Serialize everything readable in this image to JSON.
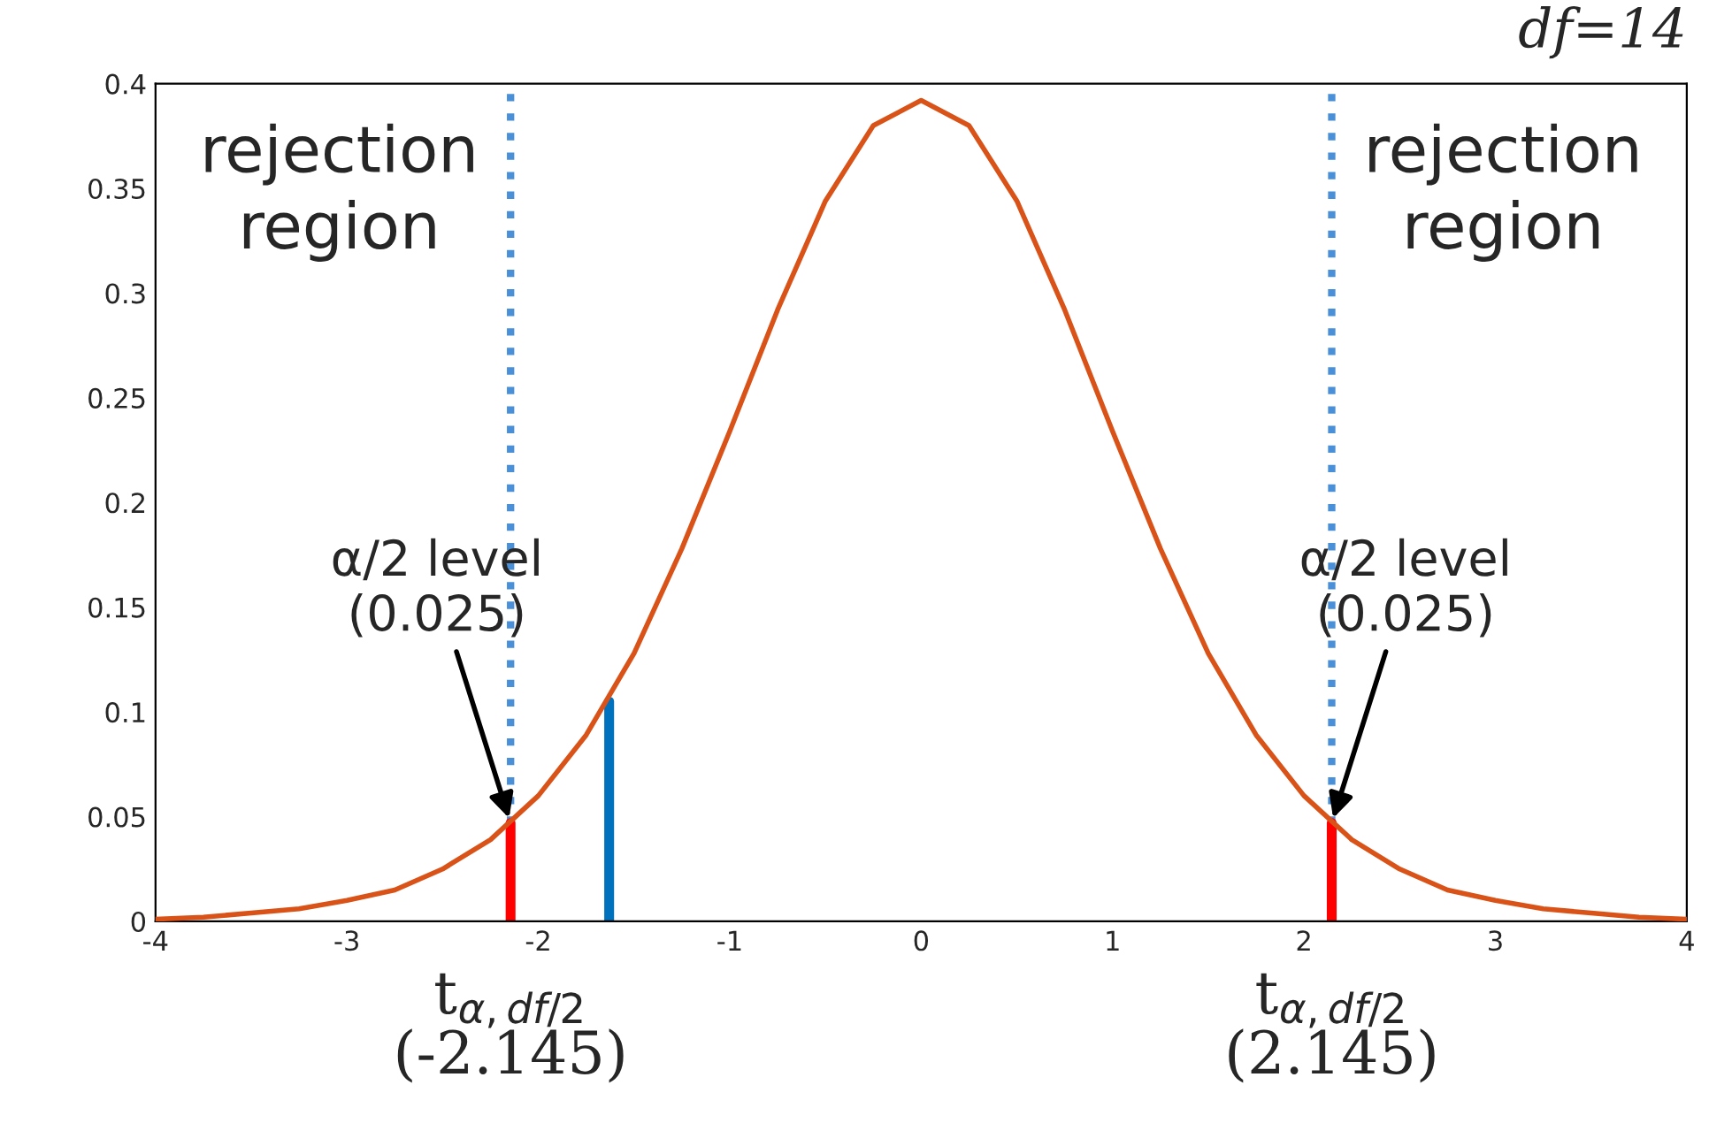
{
  "chart_data": {
    "type": "line",
    "title": "df=14",
    "x": [
      -4,
      -3.75,
      -3.5,
      -3.25,
      -3,
      -2.75,
      -2.5,
      -2.25,
      -2,
      -1.75,
      -1.5,
      -1.25,
      -1,
      -0.75,
      -0.5,
      -0.25,
      0,
      0.25,
      0.5,
      0.75,
      1,
      1.25,
      1.5,
      1.75,
      2,
      2.25,
      2.5,
      2.75,
      3,
      3.25,
      3.5,
      3.75,
      4
    ],
    "series": [
      {
        "color": "#d95319",
        "values": [
          0.001,
          0.002,
          0.004,
          0.006,
          0.01,
          0.015,
          0.025,
          0.039,
          0.06,
          0.089,
          0.128,
          0.178,
          0.234,
          0.292,
          0.344,
          0.38,
          0.392,
          0.38,
          0.344,
          0.292,
          0.234,
          0.178,
          0.128,
          0.089,
          0.06,
          0.039,
          0.025,
          0.015,
          0.01,
          0.006,
          0.004,
          0.002,
          0.001
        ]
      },
      {
        "color": "#ff0000",
        "x": [
          -2.145,
          -2.145
        ],
        "values": [
          0,
          0.047
        ]
      },
      {
        "color": "#ff0000",
        "x": [
          2.145,
          2.145
        ],
        "values": [
          0,
          0.047
        ]
      },
      {
        "color": "#0072bd",
        "x": [
          -1.63,
          -1.63
        ],
        "values": [
          0,
          0.105
        ]
      }
    ],
    "xlim": [
      -4,
      4
    ],
    "xticks": [
      -4,
      -3,
      -2,
      -1,
      0,
      1,
      2,
      3,
      4
    ],
    "ylim": [
      0,
      0.4
    ],
    "yticks": [
      0,
      0.05,
      0.1,
      0.15,
      0.2,
      0.25,
      0.3,
      0.35,
      0.4
    ],
    "ref_lines": [
      {
        "axis": "x",
        "value": -2.145,
        "label": "t$_{α,df/2}$\n(-2.145)",
        "color": "#4a90d9",
        "line_style": "dotted"
      },
      {
        "axis": "x",
        "value": 2.145,
        "label": "t$_{α,df/2}$\n(2.145)",
        "color": "#4a90d9",
        "line_style": "dotted"
      }
    ],
    "annotations": [
      "rejection\nregion",
      "rejection\nregion",
      {
        "text": "α/2 level\n(0.025)",
        "x": -2.145,
        "y": 0.047
      },
      {
        "text": "α/2 level\n(0.025)",
        "x": 2.145,
        "y": 0.047
      }
    ],
    "grid": false,
    "legend": false,
    "marker": "none",
    "line_style": "solid"
  }
}
